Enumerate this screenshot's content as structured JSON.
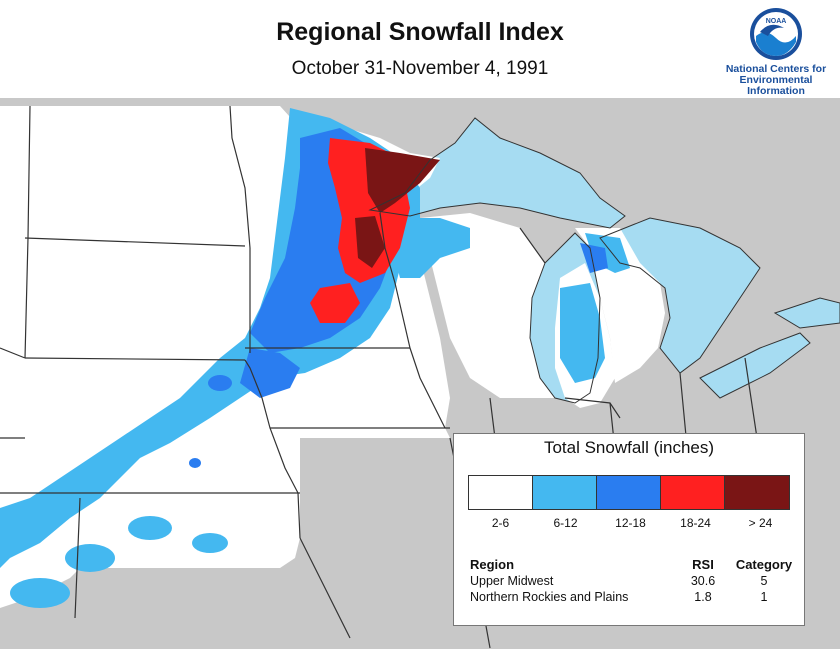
{
  "header": {
    "title": "Regional Snowfall Index",
    "subtitle": "October 31-November 4, 1991"
  },
  "logo": {
    "badge_text": "NOAA",
    "line1": "National Centers for",
    "line2": "Environmental",
    "line3": "Information",
    "icon": "noaa-logo-icon"
  },
  "colors": {
    "water": "#a6dcf2",
    "outside": "#c8c8c8",
    "land_base": "#ffffff",
    "border": "#333333"
  },
  "legend": {
    "title": "Total Snowfall (inches)",
    "bins": [
      {
        "label": "2-6",
        "color": "#ffffff"
      },
      {
        "label": "6-12",
        "color": "#44b8f0"
      },
      {
        "label": "12-18",
        "color": "#2a7df0"
      },
      {
        "label": "18-24",
        "color": "#ff2020"
      },
      {
        "label": "> 24",
        "color": "#7a1515"
      }
    ],
    "headers": {
      "region": "Region",
      "rsi": "RSI",
      "category": "Category"
    },
    "rows": [
      {
        "region": "Upper Midwest",
        "rsi": "30.6",
        "category": "5"
      },
      {
        "region": "Northern Rockies and Plains",
        "rsi": "1.8",
        "category": "1"
      }
    ]
  }
}
